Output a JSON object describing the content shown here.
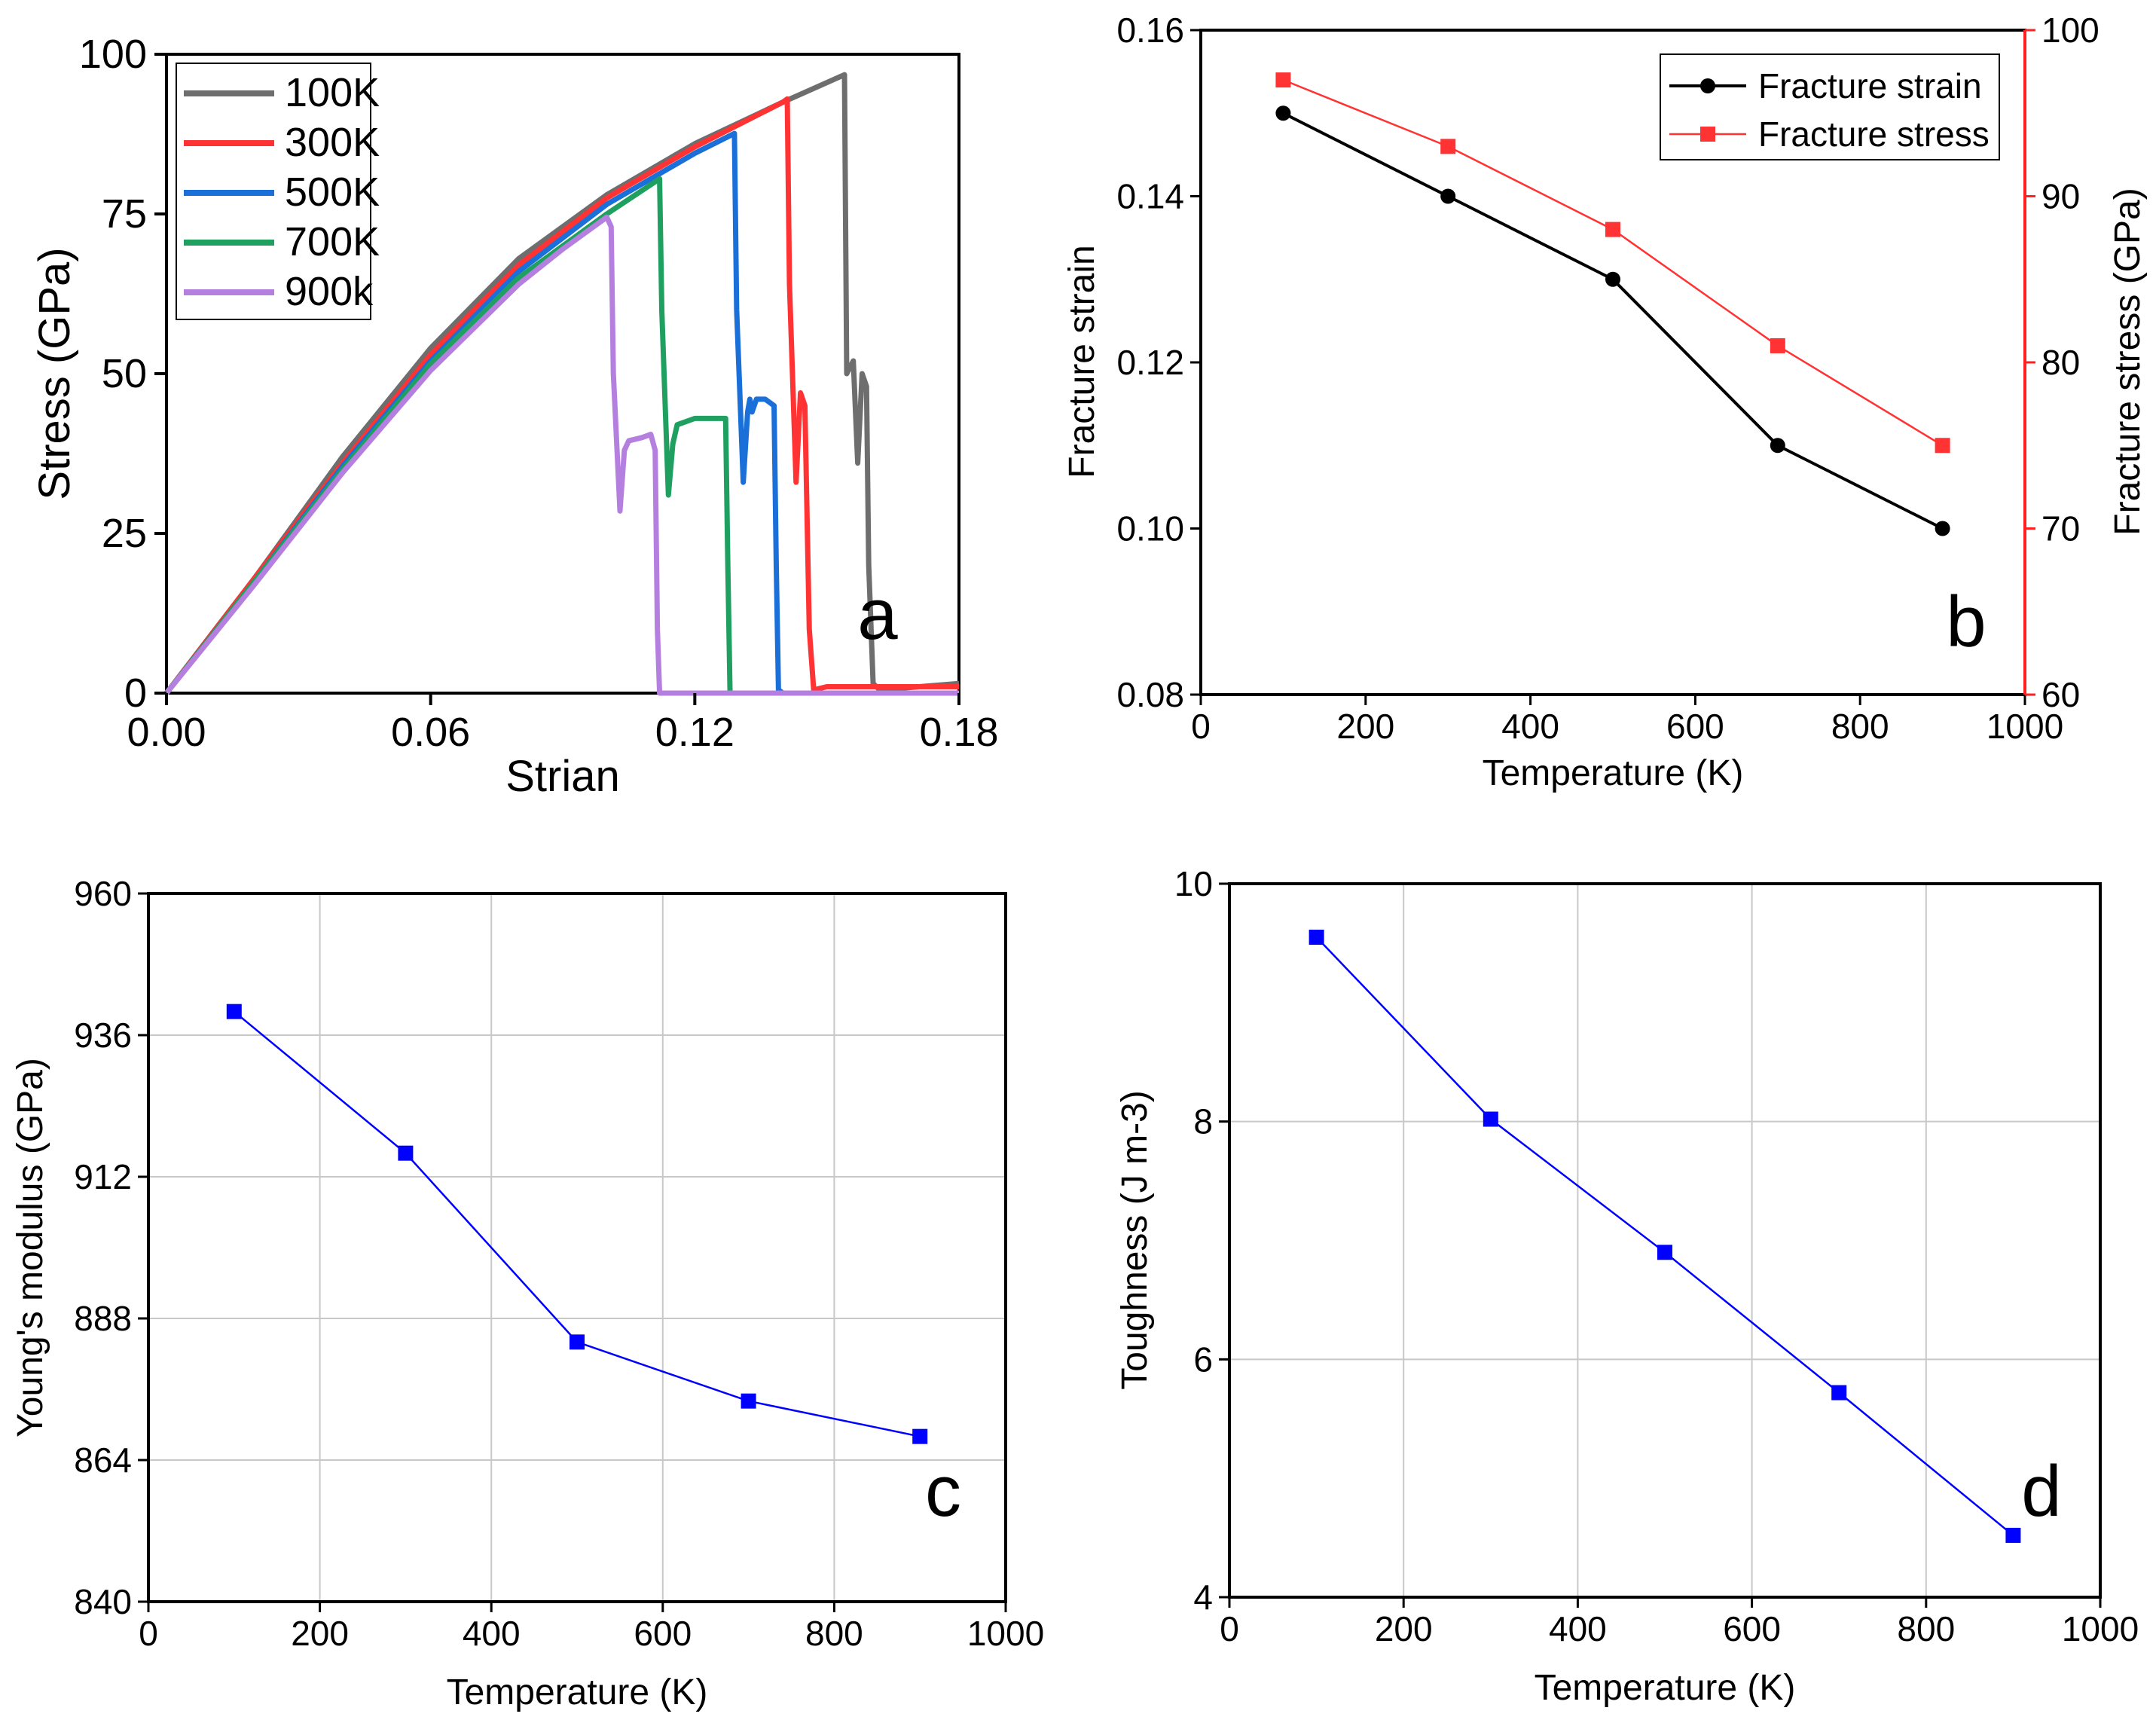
{
  "chart_data": [
    {
      "id": "a",
      "type": "line",
      "panel_letter": "a",
      "xlabel": "Strian",
      "ylabel": "Stress (GPa)",
      "xlim": [
        0,
        0.18
      ],
      "ylim": [
        0,
        100
      ],
      "xticks": [
        "0.00",
        "0.06",
        "0.12",
        "0.18"
      ],
      "yticks": [
        "0",
        "25",
        "50",
        "75",
        "100"
      ],
      "legend": "top-left",
      "series": [
        {
          "name": "100K",
          "color": "#6e6e6e",
          "x": [
            0,
            0.02,
            0.04,
            0.06,
            0.08,
            0.1,
            0.12,
            0.14,
            0.154,
            0.1545,
            0.156,
            0.157,
            0.158,
            0.159,
            0.1595,
            0.1605,
            0.162,
            0.18
          ],
          "y": [
            0,
            18,
            37,
            54,
            68,
            78,
            86,
            92.5,
            96.8,
            50,
            52,
            36,
            50,
            48,
            20,
            1.5,
            0.5,
            1.5
          ]
        },
        {
          "name": "300K",
          "color": "#ff3333",
          "x": [
            0,
            0.02,
            0.04,
            0.06,
            0.08,
            0.1,
            0.12,
            0.14,
            0.141,
            0.1415,
            0.143,
            0.144,
            0.145,
            0.146,
            0.147,
            0.15,
            0.18
          ],
          "y": [
            0,
            18,
            36,
            53,
            67,
            77.5,
            85.5,
            92.5,
            93,
            64,
            33,
            47,
            45,
            10,
            0.5,
            1,
            1
          ]
        },
        {
          "name": "500K",
          "color": "#1a6fd9",
          "x": [
            0,
            0.02,
            0.04,
            0.06,
            0.08,
            0.1,
            0.12,
            0.129,
            0.1295,
            0.131,
            0.132,
            0.1325,
            0.133,
            0.134,
            0.136,
            0.138,
            0.1385,
            0.139,
            0.14,
            0.18
          ],
          "y": [
            0,
            17.5,
            35.5,
            52,
            66,
            76.5,
            84.5,
            87.6,
            60,
            33,
            44,
            46,
            44,
            46,
            46,
            45,
            20,
            0.5,
            0,
            0
          ]
        },
        {
          "name": "700K",
          "color": "#1fa060",
          "x": [
            0,
            0.02,
            0.04,
            0.06,
            0.08,
            0.1,
            0.112,
            0.1125,
            0.114,
            0.115,
            0.116,
            0.12,
            0.124,
            0.127,
            0.1275,
            0.128,
            0.18
          ],
          "y": [
            0,
            17.5,
            35,
            51.5,
            65,
            75,
            80.5,
            60,
            31,
            39,
            42,
            43,
            43,
            43,
            20,
            0,
            0
          ]
        },
        {
          "name": "900k",
          "color": "#b57fe0",
          "x": [
            0,
            0.02,
            0.04,
            0.06,
            0.08,
            0.09,
            0.1,
            0.101,
            0.1015,
            0.103,
            0.104,
            0.105,
            0.108,
            0.11,
            0.111,
            0.1115,
            0.112,
            0.18
          ],
          "y": [
            0,
            17,
            34.5,
            50.5,
            64,
            69.5,
            74.5,
            73,
            50,
            28.5,
            38,
            39.5,
            40,
            40.5,
            38,
            10,
            0,
            0
          ]
        }
      ]
    },
    {
      "id": "b",
      "type": "line",
      "panel_letter": "b",
      "xlabel": "Temperature (K)",
      "ylabel": "Fracture strain",
      "y2label": "Fracture stress (GPa)",
      "xlim": [
        0,
        1000
      ],
      "ylim": [
        0.08,
        0.16
      ],
      "y2lim": [
        60,
        100
      ],
      "xticks": [
        "0",
        "200",
        "400",
        "600",
        "800",
        "1000"
      ],
      "yticks": [
        "0.08",
        "0.10",
        "0.12",
        "0.14",
        "0.16"
      ],
      "y2ticks": [
        "60",
        "70",
        "80",
        "90",
        "100"
      ],
      "legend": "top-right",
      "series": [
        {
          "name": "Fracture strain",
          "color": "#000000",
          "marker": "circle",
          "axis": "left",
          "x": [
            100,
            300,
            500,
            700,
            900
          ],
          "y": [
            0.15,
            0.14,
            0.13,
            0.11,
            0.1
          ]
        },
        {
          "name": "Fracture stress",
          "color": "#ff3333",
          "marker": "square",
          "axis": "right",
          "x": [
            100,
            300,
            500,
            700,
            900
          ],
          "y": [
            97,
            93,
            88,
            81,
            75
          ]
        }
      ]
    },
    {
      "id": "c",
      "type": "line",
      "panel_letter": "c",
      "xlabel": "Temperature (K)",
      "ylabel": "Young's modulus (GPa)",
      "xlim": [
        0,
        1000
      ],
      "ylim": [
        840,
        960
      ],
      "xticks": [
        "0",
        "200",
        "400",
        "600",
        "800",
        "1000"
      ],
      "yticks": [
        "840",
        "864",
        "888",
        "912",
        "936",
        "960"
      ],
      "grid": true,
      "series": [
        {
          "name": "Young's modulus",
          "color": "#0000ff",
          "marker": "square",
          "x": [
            100,
            300,
            500,
            700,
            900
          ],
          "y": [
            940,
            916,
            884,
            874,
            868
          ]
        }
      ]
    },
    {
      "id": "d",
      "type": "line",
      "panel_letter": "d",
      "xlabel": "Temperature (K)",
      "ylabel": "Toughness (J m-3)",
      "xlim": [
        0,
        1000
      ],
      "ylim": [
        4,
        10
      ],
      "xticks": [
        "0",
        "200",
        "400",
        "600",
        "800",
        "1000"
      ],
      "yticks": [
        "4",
        "6",
        "8",
        "10"
      ],
      "grid": true,
      "series": [
        {
          "name": "Toughness",
          "color": "#0000ff",
          "marker": "square",
          "x": [
            100,
            300,
            500,
            700,
            900
          ],
          "y": [
            9.55,
            8.02,
            6.9,
            5.72,
            4.52
          ]
        }
      ]
    }
  ]
}
